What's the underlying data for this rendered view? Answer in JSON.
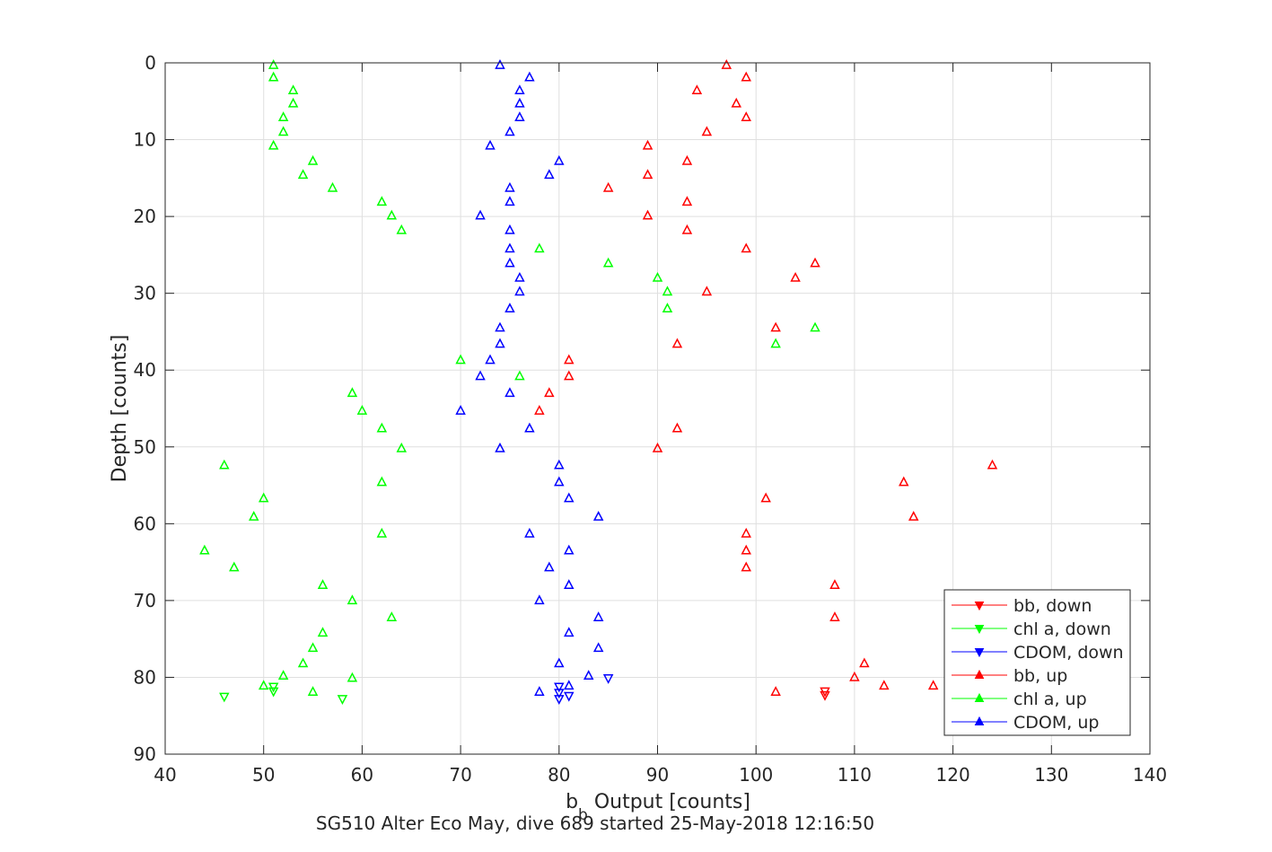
{
  "chart_data": {
    "type": "scatter",
    "title": "",
    "xlabel": "b_b Output [counts]",
    "xlabel_main": "b",
    "xlabel_sub": "b",
    "xlabel_rest": " Output [counts]",
    "ylabel": "Depth [counts]",
    "caption": "SG510 Alter Eco May, dive 689 started 25-May-2018 12:16:50",
    "xlim": [
      40,
      140
    ],
    "ylim": [
      0,
      90
    ],
    "y_reversed": true,
    "xticks": [
      40,
      50,
      60,
      70,
      80,
      90,
      100,
      110,
      120,
      130,
      140
    ],
    "yticks": [
      0,
      10,
      20,
      30,
      40,
      50,
      60,
      70,
      80,
      90
    ],
    "grid": true,
    "legend_position": "bottom-right",
    "series": [
      {
        "name": "bb, down",
        "color": "#ff0000",
        "marker": "triangle-down",
        "points": [
          [
            107,
            81.8
          ],
          [
            107,
            82.3
          ]
        ]
      },
      {
        "name": "chl a, down",
        "color": "#00ff00",
        "marker": "triangle-down",
        "points": [
          [
            51,
            81.2
          ],
          [
            51,
            81.8
          ],
          [
            46,
            82.5
          ],
          [
            58,
            82.8
          ]
        ]
      },
      {
        "name": "CDOM, down",
        "color": "#0000ff",
        "marker": "triangle-down",
        "points": [
          [
            85,
            80.1
          ],
          [
            80,
            81.2
          ],
          [
            80,
            82.0
          ],
          [
            81,
            82.4
          ],
          [
            80,
            82.8
          ]
        ]
      },
      {
        "name": "bb, up",
        "color": "#ff0000",
        "marker": "triangle-up",
        "points": [
          [
            97,
            0.3
          ],
          [
            99,
            1.9
          ],
          [
            94,
            3.6
          ],
          [
            98,
            5.3
          ],
          [
            99,
            7.1
          ],
          [
            95,
            9.0
          ],
          [
            89,
            10.8
          ],
          [
            93,
            12.8
          ],
          [
            89,
            14.6
          ],
          [
            85,
            16.3
          ],
          [
            93,
            18.1
          ],
          [
            89,
            19.9
          ],
          [
            93,
            21.8
          ],
          [
            99,
            24.2
          ],
          [
            106,
            26.1
          ],
          [
            104,
            28.0
          ],
          [
            95,
            29.8
          ],
          [
            102,
            34.5
          ],
          [
            92,
            36.6
          ],
          [
            81,
            38.7
          ],
          [
            81,
            40.8
          ],
          [
            79,
            43.0
          ],
          [
            78,
            45.3
          ],
          [
            92,
            47.6
          ],
          [
            90,
            50.2
          ],
          [
            124,
            52.4
          ],
          [
            115,
            54.6
          ],
          [
            101,
            56.7
          ],
          [
            116,
            59.1
          ],
          [
            99,
            61.3
          ],
          [
            99,
            63.5
          ],
          [
            99,
            65.7
          ],
          [
            108,
            68.0
          ],
          [
            108,
            72.2
          ],
          [
            111,
            78.2
          ],
          [
            110,
            80.0
          ],
          [
            113,
            81.1
          ],
          [
            102,
            81.9
          ],
          [
            118,
            81.1
          ]
        ]
      },
      {
        "name": "chl a, up",
        "color": "#00ff00",
        "marker": "triangle-up",
        "points": [
          [
            51,
            0.3
          ],
          [
            51,
            1.9
          ],
          [
            53,
            3.6
          ],
          [
            53,
            5.3
          ],
          [
            52,
            7.1
          ],
          [
            52,
            9.0
          ],
          [
            51,
            10.8
          ],
          [
            55,
            12.8
          ],
          [
            54,
            14.6
          ],
          [
            57,
            16.3
          ],
          [
            62,
            18.1
          ],
          [
            63,
            19.9
          ],
          [
            64,
            21.8
          ],
          [
            78,
            24.2
          ],
          [
            85,
            26.1
          ],
          [
            90,
            28.0
          ],
          [
            91,
            29.8
          ],
          [
            91,
            32.0
          ],
          [
            106,
            34.5
          ],
          [
            102,
            36.6
          ],
          [
            70,
            38.7
          ],
          [
            76,
            40.8
          ],
          [
            59,
            43.0
          ],
          [
            60,
            45.3
          ],
          [
            62,
            47.6
          ],
          [
            64,
            50.2
          ],
          [
            46,
            52.4
          ],
          [
            62,
            54.6
          ],
          [
            50,
            56.7
          ],
          [
            49,
            59.1
          ],
          [
            62,
            61.3
          ],
          [
            44,
            63.5
          ],
          [
            47,
            65.7
          ],
          [
            56,
            68.0
          ],
          [
            59,
            70.0
          ],
          [
            63,
            72.2
          ],
          [
            56,
            74.2
          ],
          [
            55,
            76.2
          ],
          [
            54,
            78.2
          ],
          [
            52,
            79.8
          ],
          [
            50,
            81.1
          ],
          [
            55,
            81.9
          ],
          [
            59,
            80.1
          ]
        ]
      },
      {
        "name": "CDOM, up",
        "color": "#0000ff",
        "marker": "triangle-up",
        "points": [
          [
            74,
            0.3
          ],
          [
            77,
            1.9
          ],
          [
            76,
            3.6
          ],
          [
            76,
            5.3
          ],
          [
            76,
            7.1
          ],
          [
            75,
            9.0
          ],
          [
            73,
            10.8
          ],
          [
            80,
            12.8
          ],
          [
            79,
            14.6
          ],
          [
            75,
            16.3
          ],
          [
            75,
            18.1
          ],
          [
            72,
            19.9
          ],
          [
            75,
            21.8
          ],
          [
            75,
            24.2
          ],
          [
            75,
            26.1
          ],
          [
            76,
            28.0
          ],
          [
            76,
            29.8
          ],
          [
            75,
            32.0
          ],
          [
            74,
            34.5
          ],
          [
            74,
            36.6
          ],
          [
            73,
            38.7
          ],
          [
            72,
            40.8
          ],
          [
            75,
            43.0
          ],
          [
            70,
            45.3
          ],
          [
            77,
            47.6
          ],
          [
            74,
            50.2
          ],
          [
            80,
            52.4
          ],
          [
            80,
            54.6
          ],
          [
            81,
            56.7
          ],
          [
            84,
            59.1
          ],
          [
            77,
            61.3
          ],
          [
            81,
            63.5
          ],
          [
            79,
            65.7
          ],
          [
            81,
            68.0
          ],
          [
            78,
            70.0
          ],
          [
            84,
            72.2
          ],
          [
            81,
            74.2
          ],
          [
            84,
            76.2
          ],
          [
            80,
            78.2
          ],
          [
            83,
            79.8
          ],
          [
            81,
            81.1
          ],
          [
            78,
            81.9
          ]
        ]
      }
    ]
  }
}
